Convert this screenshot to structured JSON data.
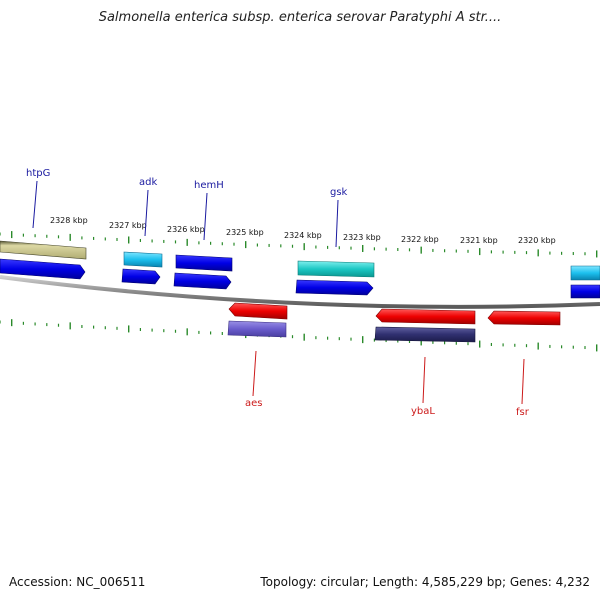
{
  "title": "Salmonella enterica subsp. enterica serovar Paratyphi A str....",
  "footer": {
    "accession": "Accession: NC_006511",
    "summary": "Topology: circular; Length: 4,585,229 bp; Genes: 4,232"
  },
  "colors": {
    "backbone": "#8c8c8c",
    "tick": "#2a8a2a",
    "label_forward": "#1a1aa0",
    "label_reverse": "#cc1a1a"
  },
  "kbp_ticks": [
    {
      "label": "2328 kbp",
      "pos": 2328
    },
    {
      "label": "2327 kbp",
      "pos": 2327
    },
    {
      "label": "2326 kbp",
      "pos": 2326
    },
    {
      "label": "2325 kbp",
      "pos": 2325
    },
    {
      "label": "2324 kbp",
      "pos": 2324
    },
    {
      "label": "2323 kbp",
      "pos": 2323
    },
    {
      "label": "2322 kbp",
      "pos": 2322
    },
    {
      "label": "2321 kbp",
      "pos": 2321
    },
    {
      "label": "2320 kbp",
      "pos": 2320
    }
  ],
  "gene_labels": [
    {
      "name": "htpG",
      "strand": "forward"
    },
    {
      "name": "adk",
      "strand": "forward"
    },
    {
      "name": "hemH",
      "strand": "forward"
    },
    {
      "name": "gsk",
      "strand": "forward"
    },
    {
      "name": "aes",
      "strand": "reverse"
    },
    {
      "name": "ybaL",
      "strand": "reverse"
    },
    {
      "name": "fsr",
      "strand": "reverse"
    }
  ]
}
